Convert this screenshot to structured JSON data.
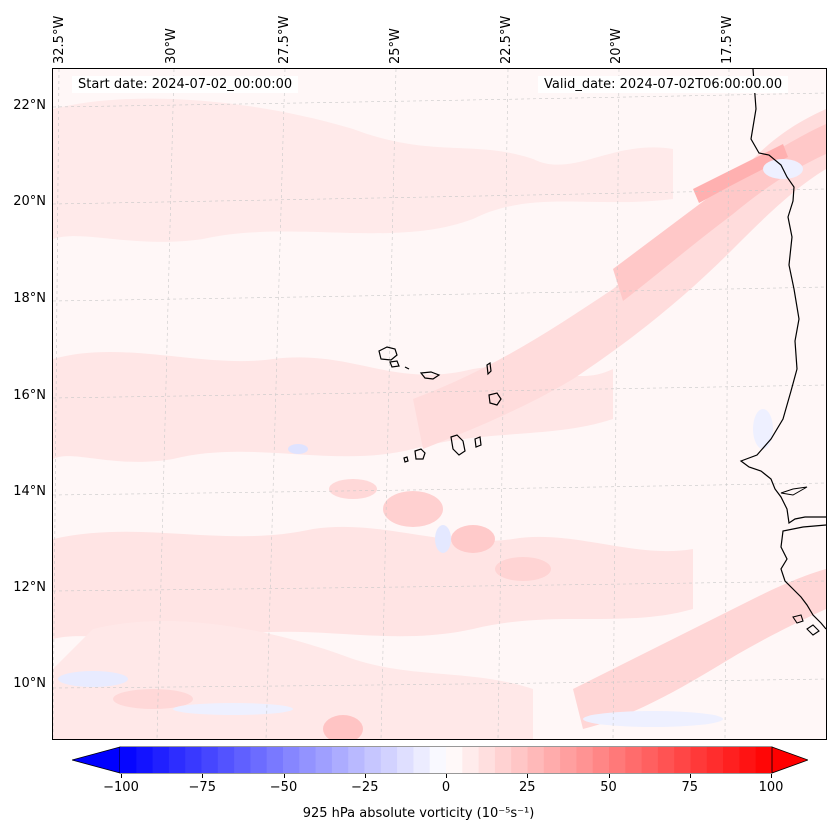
{
  "map": {
    "start_date_text": "Start date: 2024-07-02_00:00:00",
    "valid_date_text": "Valid_date: 2024-07-02T06:00:00.00",
    "lon_labels": [
      "32.5°W",
      "30°W",
      "27.5°W",
      "25°W",
      "22.5°W",
      "20°W",
      "17.5°W"
    ],
    "lat_labels": [
      "22°N",
      "20°N",
      "18°N",
      "16°N",
      "14°N",
      "12°N",
      "10°N"
    ],
    "field_colors": {
      "background": "#fff7f7",
      "light_pink": "#ffe6e6",
      "mid_pink": "#ffd5d5",
      "strong_pink": "#ffbaba",
      "light_blue": "#eef0ff",
      "mid_blue": "#dfe3ff",
      "coast": "#000000",
      "grid": "#bbbbbb"
    }
  },
  "colorbar": {
    "min": -100,
    "max": 100,
    "ticks": [
      "−100",
      "−75",
      "−50",
      "−25",
      "0",
      "25",
      "50",
      "75",
      "100"
    ],
    "label": "925 hPa absolute vorticity (10⁻⁵s⁻¹)",
    "colormap": "bwr",
    "low_color": "#0000ff",
    "mid_color": "#ffffff",
    "high_color": "#ff0000"
  }
}
